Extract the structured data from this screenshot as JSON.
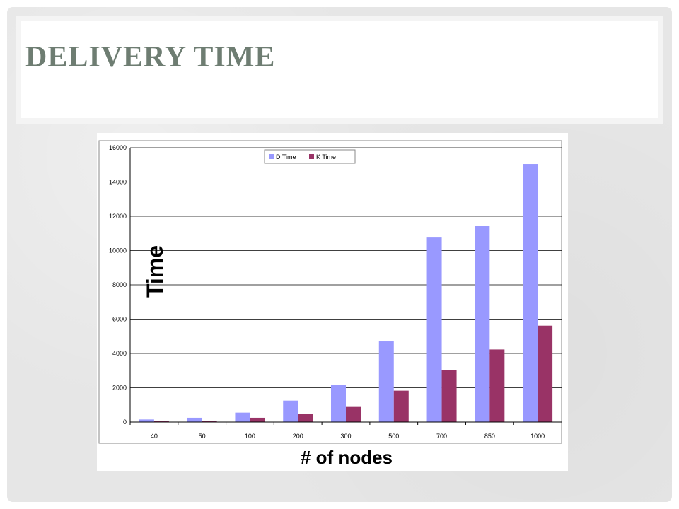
{
  "slide": {
    "title": "DELIVERY TIME"
  },
  "colors": {
    "background": "#e6e6e6",
    "title": "#6e7d72",
    "d_time": "#9999ff",
    "k_time": "#993366"
  },
  "chart_data": {
    "type": "bar",
    "categories": [
      "40",
      "50",
      "100",
      "200",
      "300",
      "500",
      "700",
      "850",
      "1000"
    ],
    "series": [
      {
        "name": "D Time",
        "values": [
          150,
          250,
          550,
          1250,
          2150,
          4700,
          10800,
          11450,
          15050
        ]
      },
      {
        "name": "K Time",
        "values": [
          70,
          80,
          250,
          480,
          880,
          1830,
          3050,
          4230,
          5620
        ]
      }
    ],
    "xlabel": "# of nodes",
    "ylabel": "Time",
    "ylim": [
      0,
      16000
    ],
    "yticks": [
      "0",
      "2000",
      "4000",
      "6000",
      "8000",
      "10000",
      "12000",
      "14000",
      "16000"
    ],
    "grid": true,
    "legend": "top-center"
  }
}
